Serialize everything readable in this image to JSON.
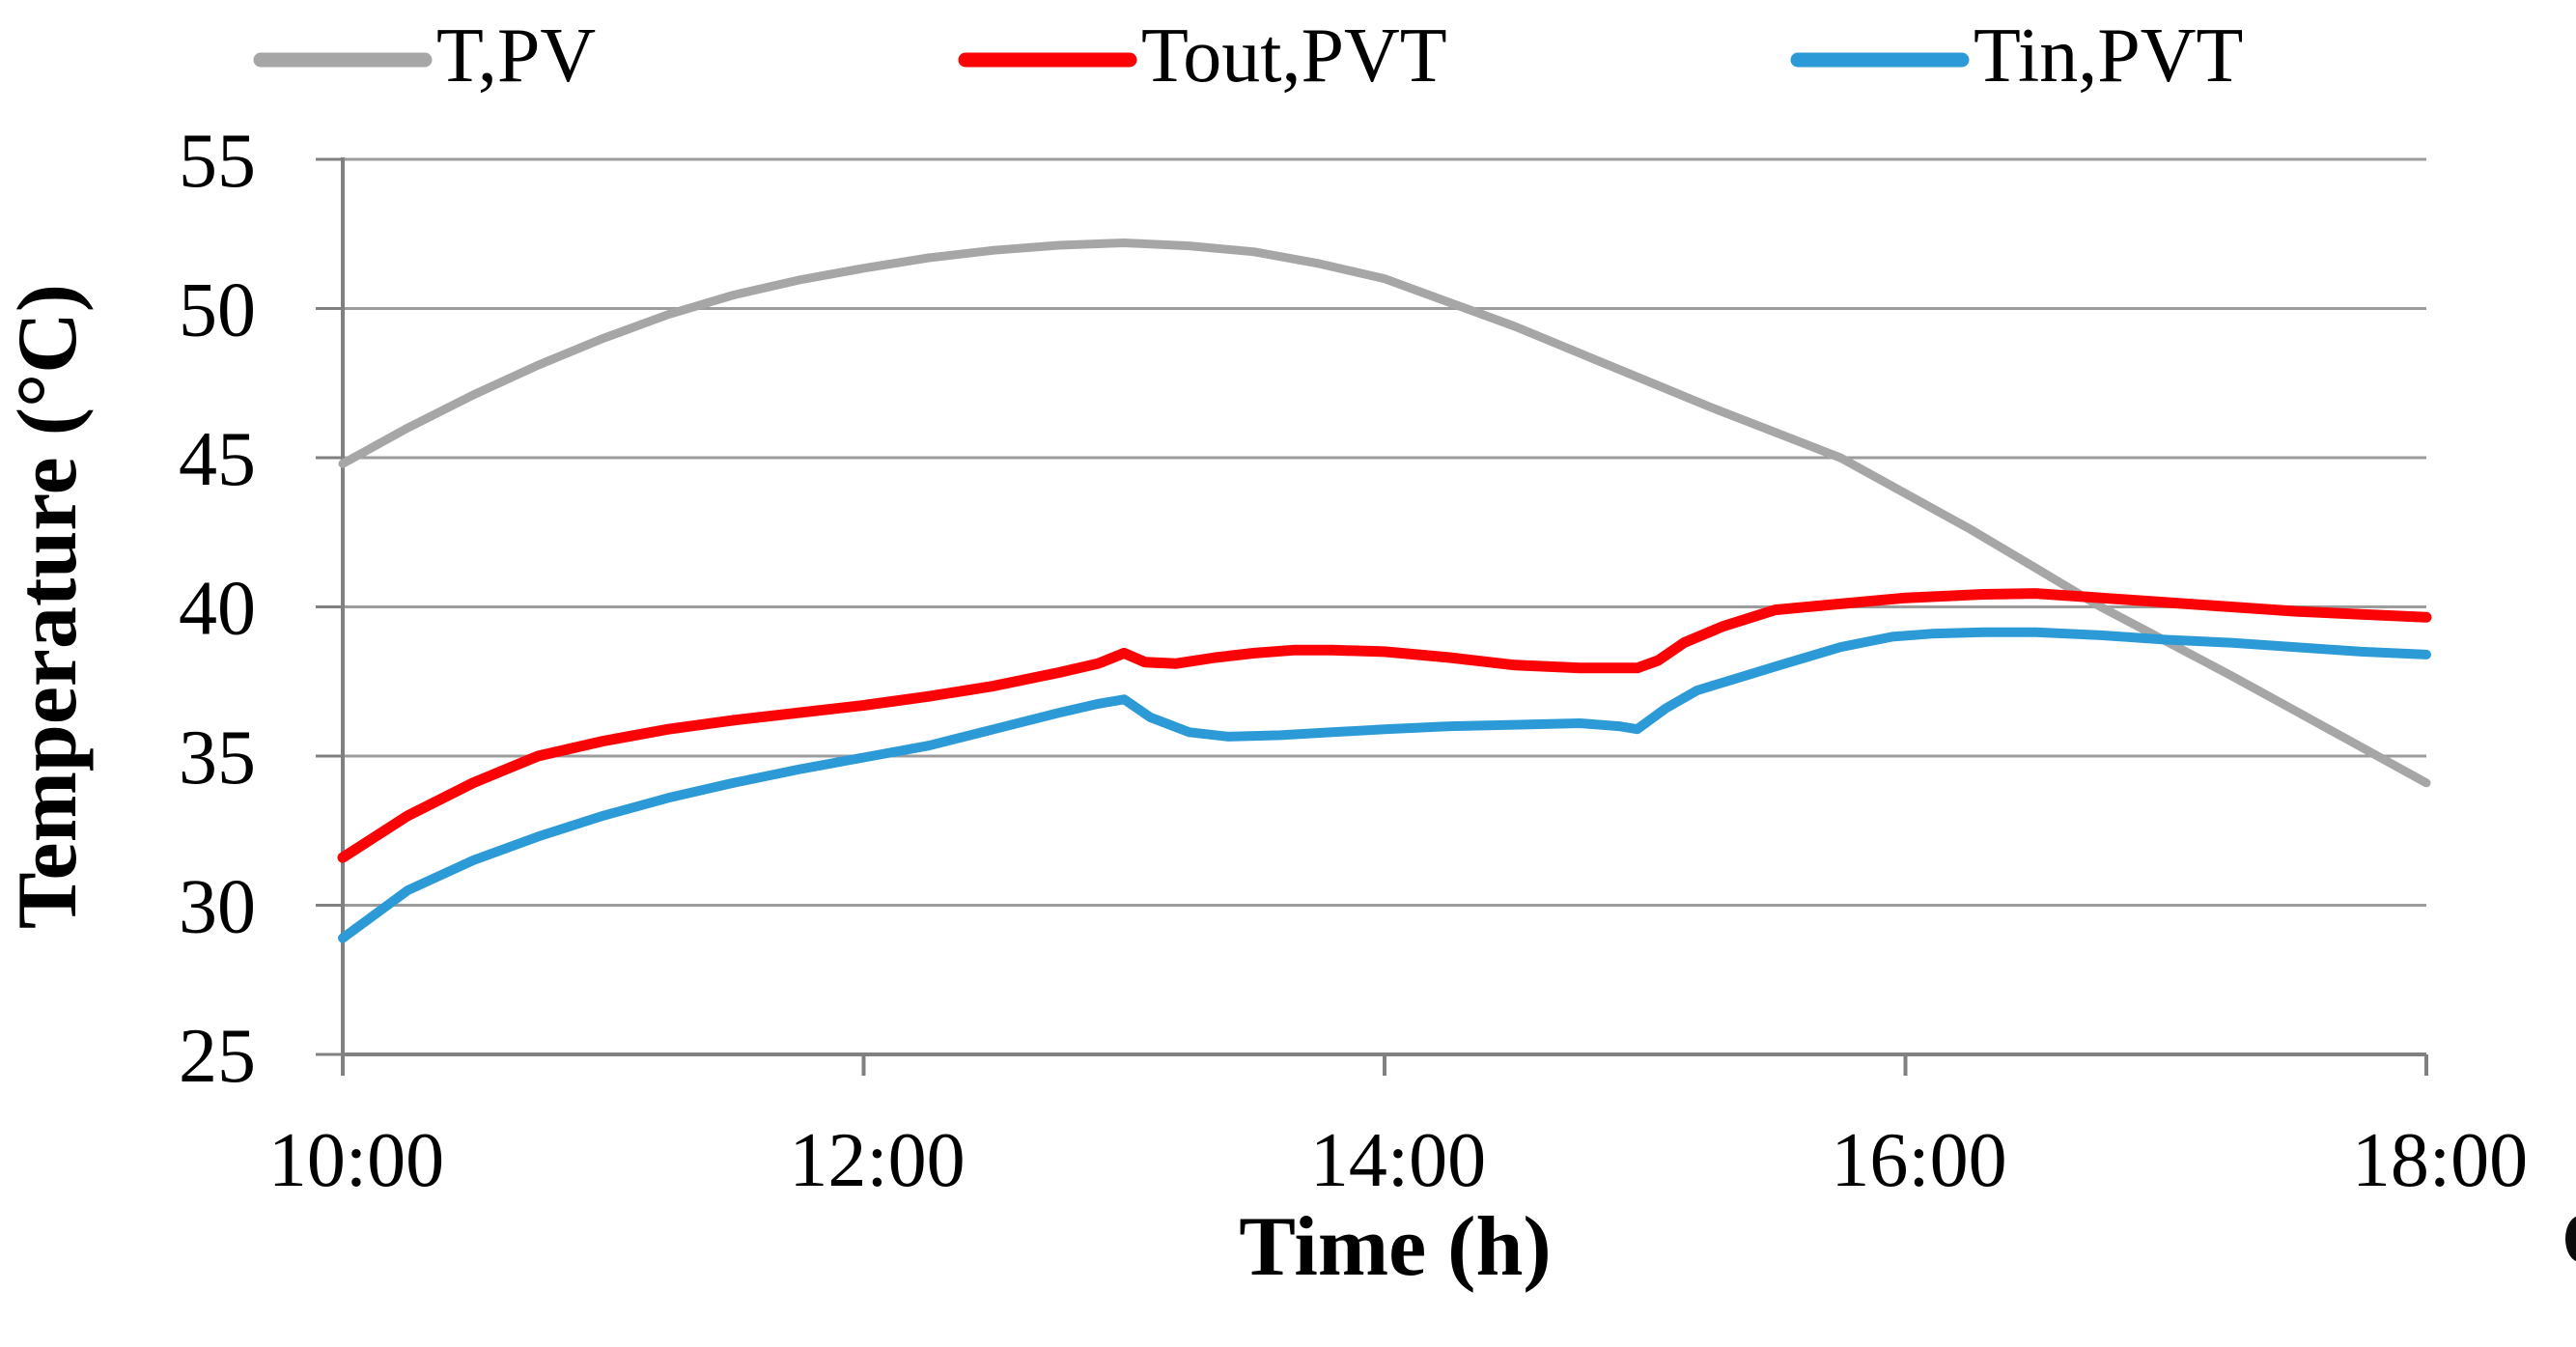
{
  "chart_data": {
    "type": "line",
    "title": "",
    "xlabel": "Time (h)",
    "ylabel": "Temperature (°C)",
    "xlim": [
      10,
      18
    ],
    "ylim": [
      25,
      55
    ],
    "grid": "horizontal",
    "legend_position": "top",
    "x_ticks": [
      {
        "label": "10:00",
        "hour": 10
      },
      {
        "label": "12:00",
        "hour": 12
      },
      {
        "label": "14:00",
        "hour": 14
      },
      {
        "label": "16:00",
        "hour": 16
      },
      {
        "label": "18:00",
        "hour": 18
      }
    ],
    "y_ticks": [
      55,
      50,
      45,
      40,
      35,
      30,
      25
    ],
    "colors": {
      "grid": "#9c9c9c",
      "axis": "#808080",
      "text": "#000000",
      "background": "#ffffff"
    },
    "series": [
      {
        "name": "T,PV",
        "color": "#a6a6a6",
        "width": 9,
        "points": [
          [
            10,
            44.8
          ],
          [
            10.25,
            46.0
          ],
          [
            10.5,
            47.1
          ],
          [
            10.75,
            48.1
          ],
          [
            11,
            49.0
          ],
          [
            11.25,
            49.8
          ],
          [
            11.5,
            50.45
          ],
          [
            11.75,
            50.95
          ],
          [
            12,
            51.35
          ],
          [
            12.25,
            51.7
          ],
          [
            12.5,
            51.95
          ],
          [
            12.75,
            52.12
          ],
          [
            13,
            52.2
          ],
          [
            13.25,
            52.1
          ],
          [
            13.5,
            51.9
          ],
          [
            13.75,
            51.5
          ],
          [
            14,
            51.0
          ],
          [
            14.25,
            50.2
          ],
          [
            14.5,
            49.4
          ],
          [
            14.75,
            48.5
          ],
          [
            15,
            47.6
          ],
          [
            15.25,
            46.7
          ],
          [
            15.5,
            45.85
          ],
          [
            15.75,
            45.0
          ],
          [
            16,
            43.8
          ],
          [
            16.25,
            42.6
          ],
          [
            16.5,
            41.3
          ],
          [
            16.75,
            40.0
          ],
          [
            17,
            38.85
          ],
          [
            17.25,
            37.7
          ],
          [
            17.5,
            36.5
          ],
          [
            17.75,
            35.3
          ],
          [
            18,
            34.1
          ]
        ]
      },
      {
        "name": "Tout,PVT",
        "color": "#fb0306",
        "width": 11,
        "points": [
          [
            10,
            31.6
          ],
          [
            10.25,
            33.0
          ],
          [
            10.5,
            34.1
          ],
          [
            10.75,
            35.0
          ],
          [
            11,
            35.5
          ],
          [
            11.25,
            35.9
          ],
          [
            11.5,
            36.2
          ],
          [
            11.75,
            36.45
          ],
          [
            12,
            36.7
          ],
          [
            12.25,
            37.0
          ],
          [
            12.5,
            37.35
          ],
          [
            12.75,
            37.8
          ],
          [
            12.9,
            38.1
          ],
          [
            13,
            38.45
          ],
          [
            13.08,
            38.15
          ],
          [
            13.2,
            38.1
          ],
          [
            13.35,
            38.3
          ],
          [
            13.5,
            38.45
          ],
          [
            13.65,
            38.55
          ],
          [
            13.8,
            38.55
          ],
          [
            14,
            38.5
          ],
          [
            14.25,
            38.3
          ],
          [
            14.5,
            38.05
          ],
          [
            14.75,
            37.95
          ],
          [
            14.97,
            37.95
          ],
          [
            15.05,
            38.2
          ],
          [
            15.15,
            38.8
          ],
          [
            15.3,
            39.35
          ],
          [
            15.5,
            39.9
          ],
          [
            15.75,
            40.1
          ],
          [
            16,
            40.3
          ],
          [
            16.3,
            40.42
          ],
          [
            16.5,
            40.45
          ],
          [
            16.75,
            40.3
          ],
          [
            17,
            40.15
          ],
          [
            17.25,
            40.0
          ],
          [
            17.5,
            39.85
          ],
          [
            17.75,
            39.75
          ],
          [
            18,
            39.65
          ]
        ]
      },
      {
        "name": "Tin,PVT",
        "color": "#2b9ad7",
        "width": 10,
        "points": [
          [
            10,
            28.9
          ],
          [
            10.25,
            30.5
          ],
          [
            10.5,
            31.5
          ],
          [
            10.75,
            32.3
          ],
          [
            11,
            33.0
          ],
          [
            11.25,
            33.6
          ],
          [
            11.5,
            34.1
          ],
          [
            11.75,
            34.55
          ],
          [
            12,
            34.95
          ],
          [
            12.25,
            35.35
          ],
          [
            12.5,
            35.9
          ],
          [
            12.75,
            36.45
          ],
          [
            12.9,
            36.75
          ],
          [
            13,
            36.9
          ],
          [
            13.1,
            36.3
          ],
          [
            13.25,
            35.8
          ],
          [
            13.4,
            35.65
          ],
          [
            13.6,
            35.7
          ],
          [
            13.8,
            35.8
          ],
          [
            14,
            35.9
          ],
          [
            14.25,
            36.0
          ],
          [
            14.5,
            36.05
          ],
          [
            14.75,
            36.1
          ],
          [
            14.9,
            36.0
          ],
          [
            14.97,
            35.9
          ],
          [
            15.08,
            36.6
          ],
          [
            15.2,
            37.2
          ],
          [
            15.35,
            37.6
          ],
          [
            15.5,
            38.0
          ],
          [
            15.75,
            38.65
          ],
          [
            15.95,
            39.0
          ],
          [
            16.1,
            39.1
          ],
          [
            16.3,
            39.15
          ],
          [
            16.5,
            39.15
          ],
          [
            16.75,
            39.05
          ],
          [
            17,
            38.9
          ],
          [
            17.25,
            38.8
          ],
          [
            17.5,
            38.65
          ],
          [
            17.75,
            38.5
          ],
          [
            18,
            38.4
          ]
        ]
      }
    ]
  },
  "legend": {
    "items": [
      {
        "label": "T,PV"
      },
      {
        "label": "Tout,PVT"
      },
      {
        "label": "Tin,PVT"
      }
    ]
  },
  "artifacts": {
    "bottom_right_cropped_mark": true
  }
}
